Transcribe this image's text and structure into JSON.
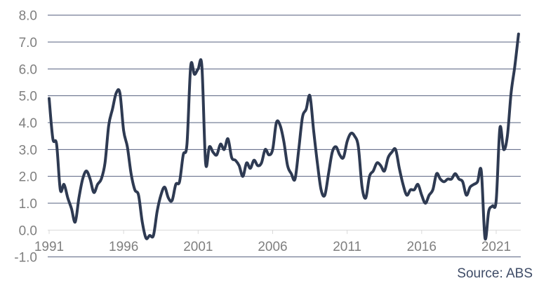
{
  "chart_data": {
    "type": "line",
    "title": "",
    "xlabel": "",
    "ylabel": "",
    "source": "Source: ABS",
    "legend": "none",
    "grid": "horizontal",
    "ylim": [
      -1.0,
      8.0
    ],
    "y_tick_step": 1.0,
    "y_axis_labels": [
      "8.0",
      "7.0",
      "6.0",
      "5.0",
      "4.0",
      "3.0",
      "2.0",
      "1.0",
      "0.0",
      "-1.0"
    ],
    "x_axis_labels": [
      "1991",
      "1996",
      "2001",
      "2006",
      "2011",
      "2016",
      "2021"
    ],
    "x_tick_years": [
      1991,
      1996,
      2001,
      2006,
      2011,
      2016,
      2021
    ],
    "x_start_year": 1991,
    "points_per_year": 4,
    "values": [
      4.9,
      3.4,
      3.2,
      1.5,
      1.7,
      1.2,
      0.8,
      0.3,
      1.2,
      1.9,
      2.2,
      1.9,
      1.4,
      1.7,
      1.9,
      2.5,
      3.9,
      4.5,
      5.1,
      5.1,
      3.7,
      3.1,
      2.1,
      1.5,
      1.3,
      0.3,
      -0.3,
      -0.2,
      -0.2,
      0.7,
      1.3,
      1.6,
      1.2,
      1.1,
      1.7,
      1.8,
      2.8,
      3.2,
      6.1,
      5.8,
      6.0,
      6.1,
      2.5,
      3.1,
      2.9,
      2.8,
      3.2,
      3.0,
      3.4,
      2.7,
      2.6,
      2.4,
      2.0,
      2.5,
      2.3,
      2.6,
      2.4,
      2.5,
      3.0,
      2.8,
      3.0,
      4.0,
      3.9,
      3.3,
      2.4,
      2.1,
      1.9,
      3.0,
      4.2,
      4.5,
      5.0,
      3.7,
      2.5,
      1.5,
      1.3,
      2.1,
      2.9,
      3.1,
      2.8,
      2.7,
      3.3,
      3.6,
      3.5,
      3.1,
      1.6,
      1.2,
      2.0,
      2.2,
      2.5,
      2.4,
      2.2,
      2.7,
      2.9,
      3.0,
      2.3,
      1.7,
      1.3,
      1.5,
      1.5,
      1.7,
      1.3,
      1.0,
      1.3,
      1.5,
      2.1,
      1.9,
      1.8,
      1.9,
      1.9,
      2.1,
      1.9,
      1.8,
      1.3,
      1.6,
      1.7,
      1.8,
      2.2,
      -0.3,
      0.7,
      0.9,
      1.1,
      3.8,
      3.0,
      3.5,
      5.1,
      6.1,
      7.3
    ],
    "colors": {
      "line": "#2e3a52",
      "gridline": "#56617f",
      "zero_axis": "#d9d9d9",
      "axis_label": "#7f7f7f",
      "source_text": "#3e4b66",
      "background": "#ffffff"
    }
  }
}
